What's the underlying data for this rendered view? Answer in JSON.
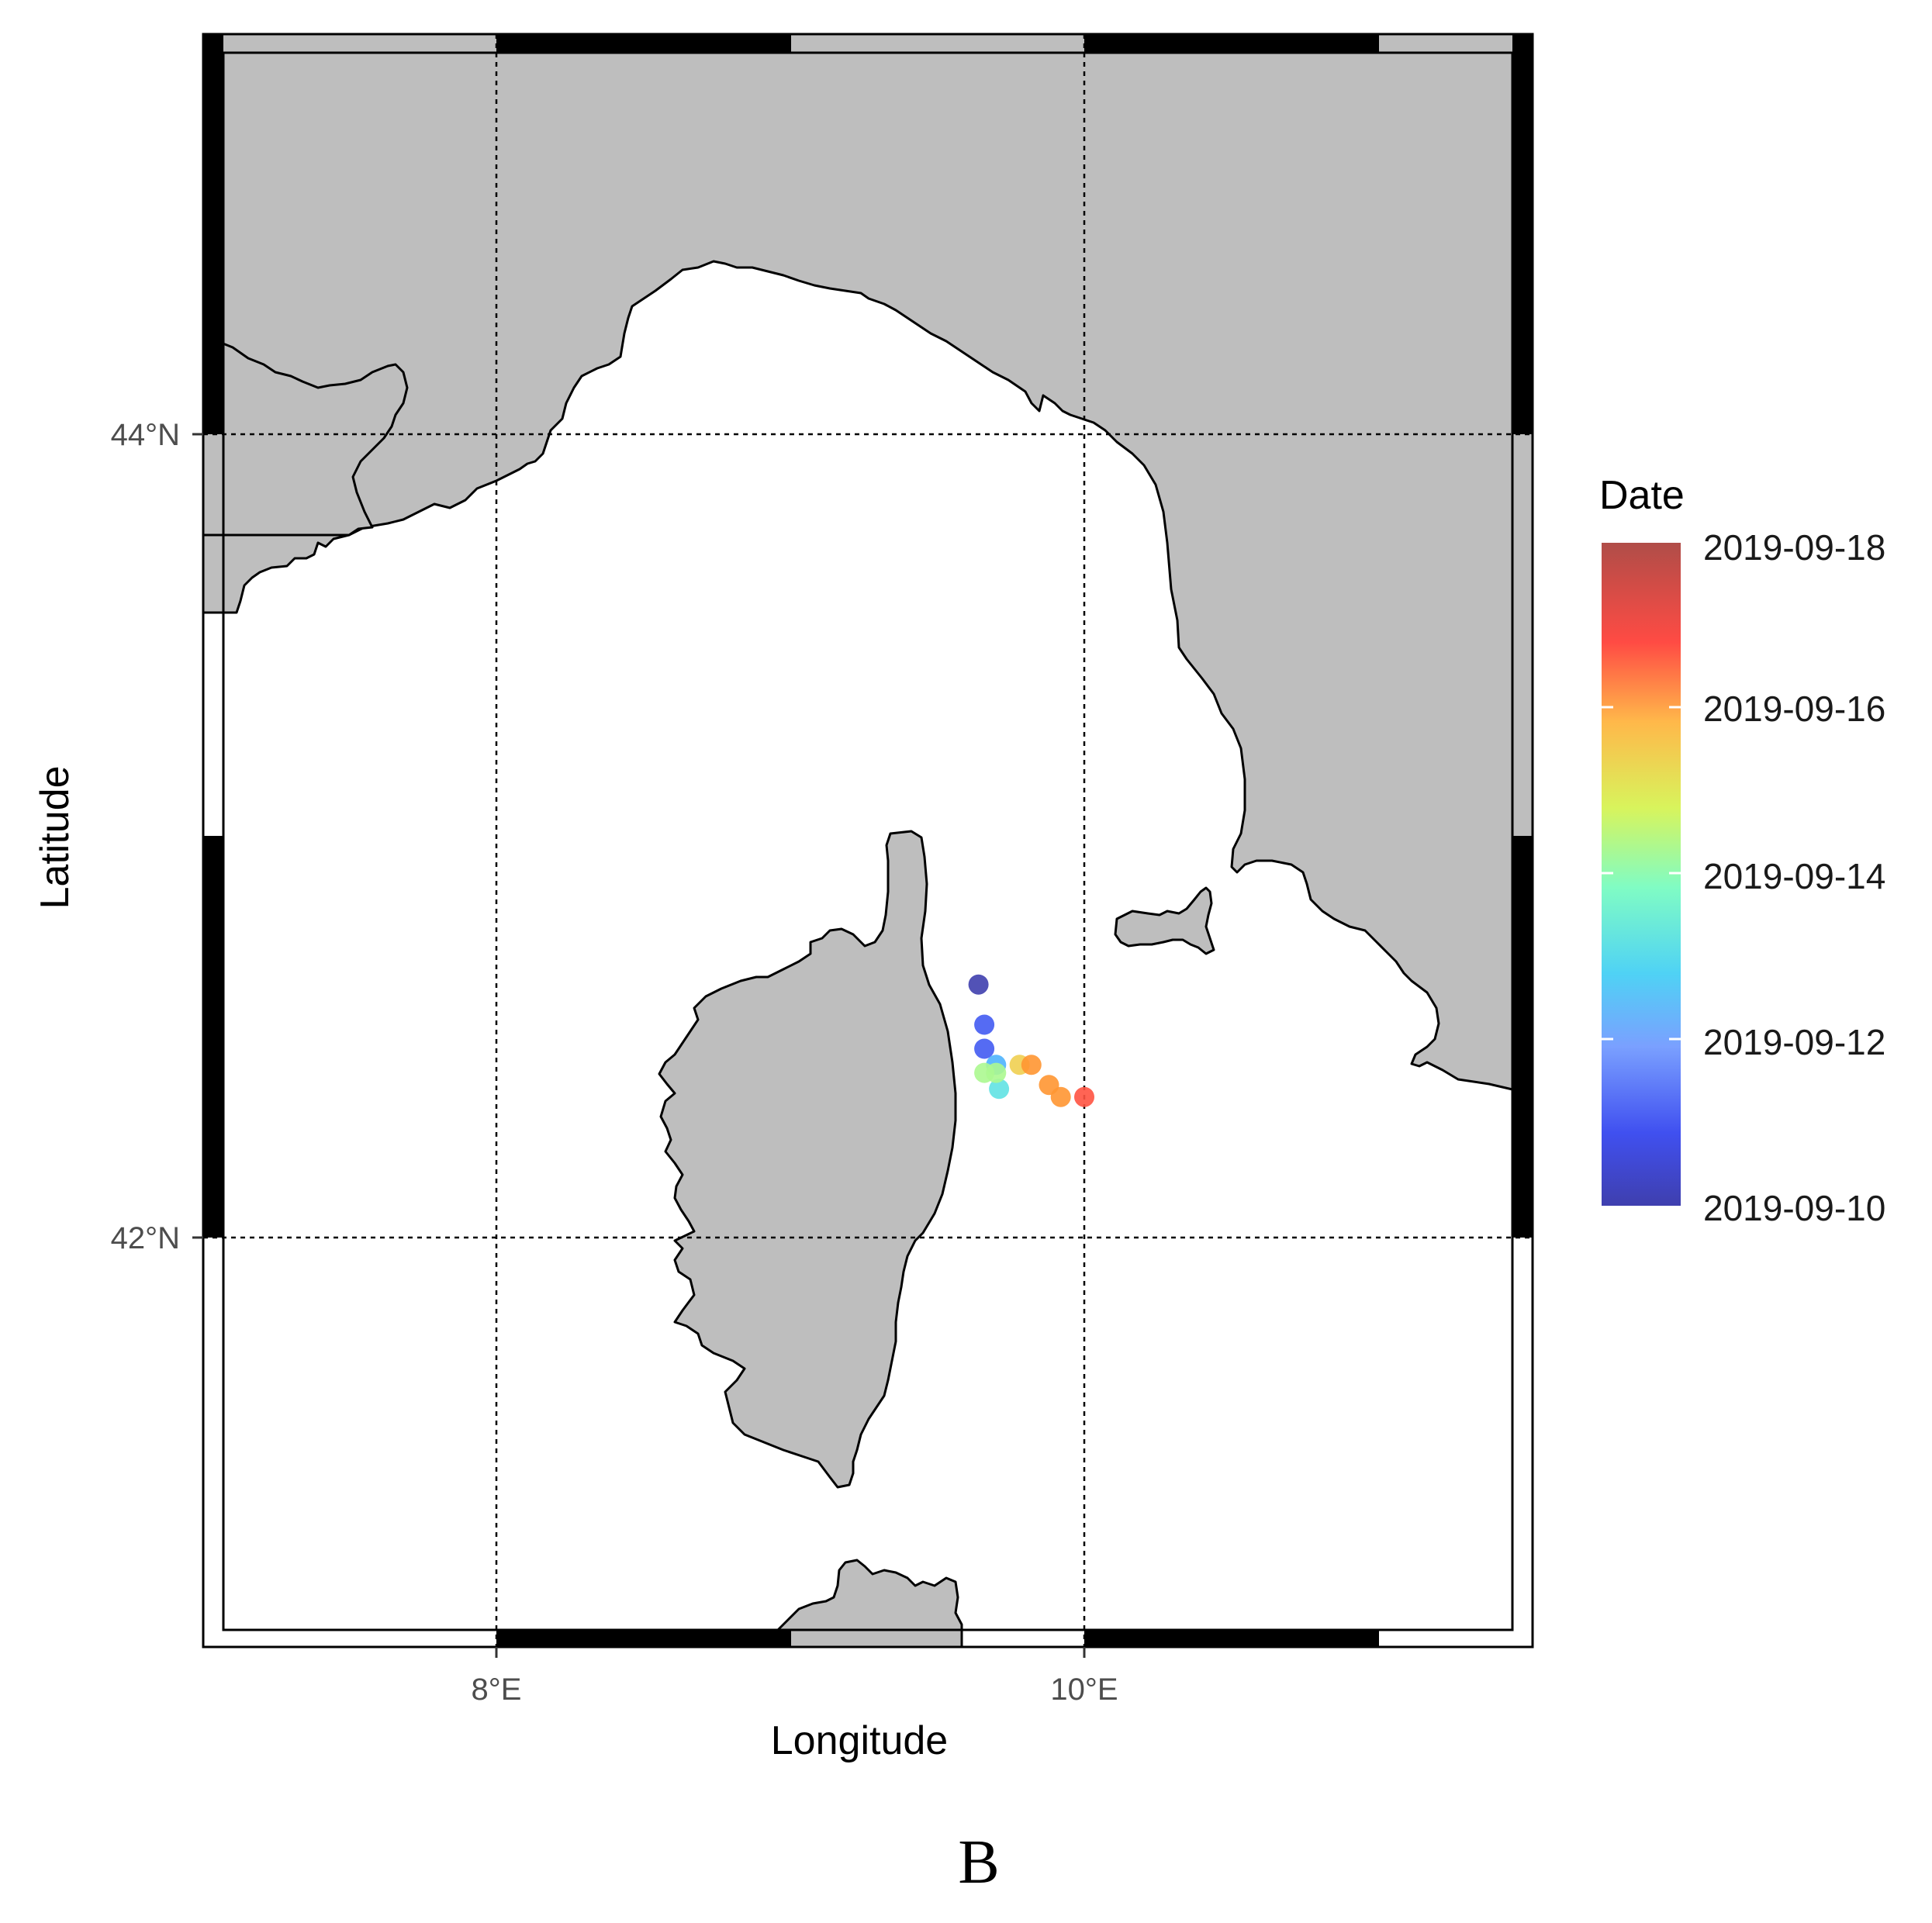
{
  "chart_data": {
    "type": "scatter",
    "kind": "track map",
    "xlabel": "Longitude",
    "ylabel": "Latitude",
    "xlim": [
      7.0,
      11.5
    ],
    "ylim": [
      40.95,
      44.95
    ],
    "x_ticks": [
      {
        "value": 8,
        "label": "8°E"
      },
      {
        "value": 10,
        "label": "10°E"
      }
    ],
    "y_ticks": [
      {
        "value": 44,
        "label": "44°N"
      },
      {
        "value": 42,
        "label": "42°N"
      }
    ],
    "grid": true,
    "legend": {
      "title": "Date",
      "placement": "right",
      "min": "2019-09-10",
      "max": "2019-09-18",
      "labels": [
        "2019-09-18",
        "2019-09-16",
        "2019-09-14",
        "2019-09-12",
        "2019-09-10"
      ],
      "colors": [
        "#3f3fae",
        "#4050f0",
        "#4da9ff",
        "#4fd2f5",
        "#80fcc4",
        "#d8f45c",
        "#ffb84a",
        "#ff8a2a",
        "#ff4b44",
        "#b04d48"
      ]
    },
    "points": [
      {
        "lon": 9.64,
        "lat": 42.63,
        "date": "2019-09-10"
      },
      {
        "lon": 9.66,
        "lat": 42.53,
        "date": "2019-09-11"
      },
      {
        "lon": 9.66,
        "lat": 42.47,
        "date": "2019-09-11"
      },
      {
        "lon": 9.7,
        "lat": 42.43,
        "date": "2019-09-12"
      },
      {
        "lon": 9.71,
        "lat": 42.37,
        "date": "2019-09-13"
      },
      {
        "lon": 9.66,
        "lat": 42.41,
        "date": "2019-09-14"
      },
      {
        "lon": 9.7,
        "lat": 42.41,
        "date": "2019-09-14"
      },
      {
        "lon": 9.78,
        "lat": 42.43,
        "date": "2019-09-15"
      },
      {
        "lon": 9.82,
        "lat": 42.43,
        "date": "2019-09-16"
      },
      {
        "lon": 9.88,
        "lat": 42.38,
        "date": "2019-09-16"
      },
      {
        "lon": 9.92,
        "lat": 42.35,
        "date": "2019-09-16"
      },
      {
        "lon": 10.0,
        "lat": 42.35,
        "date": "2019-09-17"
      }
    ]
  },
  "panel_label": "B"
}
